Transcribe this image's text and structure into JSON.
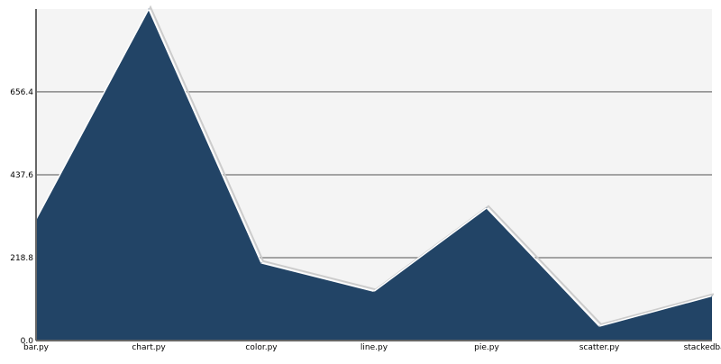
{
  "chart_data": {
    "type": "area",
    "title": "",
    "xlabel": "",
    "ylabel": "",
    "categories": [
      "bar.py",
      "chart.py",
      "color.py",
      "line.py",
      "pie.py",
      "scatter.py",
      "stackedbar.py"
    ],
    "series": [
      {
        "values": [
          320,
          875,
          205,
          130,
          350,
          38,
          118
        ]
      }
    ],
    "ylim": [
      0,
      875
    ],
    "y_ticks": [
      0,
      218.8,
      437.6,
      656.4
    ],
    "y_tick_labels": [
      "0.0",
      "218.8",
      "437.6",
      "656.4"
    ],
    "grid": "horizontal",
    "legend": "none",
    "colors": {
      "fill": "#224466",
      "plot_background": "#f4f4f4",
      "grid": "#888888",
      "axis": "#666666",
      "shadow": "#cccccc"
    }
  }
}
